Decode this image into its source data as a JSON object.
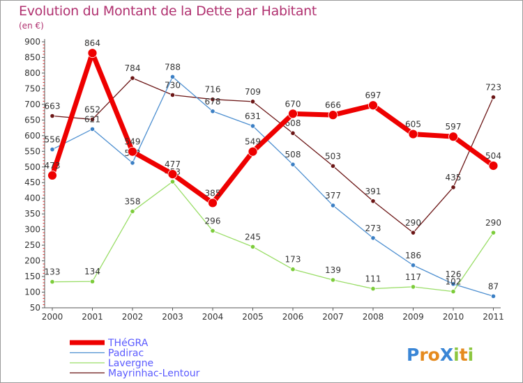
{
  "chart_data": {
    "type": "line",
    "title": "Evolution du Montant de la Dette par Habitant",
    "subtitle": "(en €)",
    "xlabel": "",
    "ylabel": "",
    "x": [
      "2000",
      "2001",
      "2002",
      "2003",
      "2004",
      "2005",
      "2006",
      "2007",
      "2008",
      "2009",
      "2010",
      "2011"
    ],
    "ylim": [
      50,
      900
    ],
    "yticks": [
      50,
      100,
      150,
      200,
      250,
      300,
      350,
      400,
      450,
      500,
      550,
      600,
      650,
      700,
      750,
      800,
      850,
      900
    ],
    "grid": false,
    "legend_position": "bottom-left",
    "series": [
      {
        "name": "Mayrinhac-Lentour",
        "color": "#6b1515",
        "dot": "#6b1515",
        "width": 1.3,
        "radius": 3.2,
        "values": [
          663,
          652,
          784,
          730,
          716,
          709,
          608,
          503,
          391,
          290,
          435,
          723
        ]
      },
      {
        "name": "Padirac",
        "color": "#4d8fd0",
        "dot": "#3b7fc4",
        "width": 1.3,
        "radius": 3.2,
        "values": [
          556,
          621,
          513,
          788,
          678,
          631,
          508,
          377,
          273,
          186,
          126,
          87
        ]
      },
      {
        "name": "Lavergne",
        "color": "#99dd66",
        "dot": "#7ccc3a",
        "width": 1.3,
        "radius": 3.2,
        "values": [
          133,
          134,
          358,
          453,
          296,
          245,
          173,
          139,
          111,
          117,
          102,
          290
        ]
      },
      {
        "name": "THéGRA",
        "color": "#ee0000",
        "dot": "#ee0000",
        "width": 7,
        "radius": 6.5,
        "values": [
          473,
          864,
          549,
          477,
          385,
          549,
          670,
          666,
          697,
          605,
          597,
          504
        ]
      }
    ]
  },
  "legend_order": [
    "THéGRA",
    "Padirac",
    "Lavergne",
    "Mayrinhac-Lentour"
  ],
  "logo": {
    "text": "ProXiti",
    "letters": [
      "P",
      "r",
      "o",
      "X",
      "i",
      "t",
      "i"
    ],
    "colors": [
      "#3a86d6",
      "#e58a1e",
      "#e58a1e",
      "#3a86d6",
      "#8cc63f",
      "#e58a1e",
      "#8cc63f"
    ]
  }
}
